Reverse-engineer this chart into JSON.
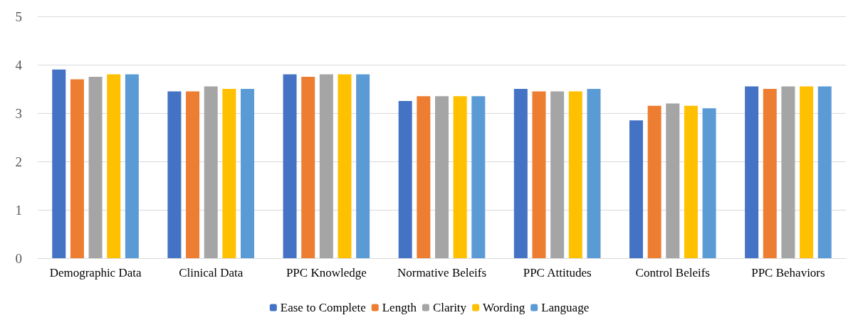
{
  "chart_data": {
    "type": "bar",
    "categories": [
      "Demographic Data",
      "Clinical Data",
      "PPC Knowledge",
      "Normative Beleifs",
      "PPC Attitudes",
      "Control Beleifs",
      "PPC Behaviors"
    ],
    "series": [
      {
        "name": "Ease to Complete",
        "color": "#4472c4",
        "values": [
          3.9,
          3.45,
          3.8,
          3.25,
          3.5,
          2.85,
          3.55
        ]
      },
      {
        "name": "Length",
        "color": "#ed7d31",
        "values": [
          3.7,
          3.45,
          3.75,
          3.35,
          3.45,
          3.15,
          3.5
        ]
      },
      {
        "name": "Clarity",
        "color": "#a5a5a5",
        "values": [
          3.75,
          3.55,
          3.8,
          3.35,
          3.45,
          3.2,
          3.55
        ]
      },
      {
        "name": "Wording",
        "color": "#ffc000",
        "values": [
          3.8,
          3.5,
          3.8,
          3.35,
          3.45,
          3.15,
          3.55
        ]
      },
      {
        "name": "Language",
        "color": "#5b9bd5",
        "values": [
          3.8,
          3.5,
          3.8,
          3.35,
          3.5,
          3.1,
          3.55
        ]
      }
    ],
    "ylim": [
      0,
      5
    ],
    "yticks": [
      0,
      1,
      2,
      3,
      4,
      5
    ],
    "grid": "y",
    "legend": "bottom"
  }
}
